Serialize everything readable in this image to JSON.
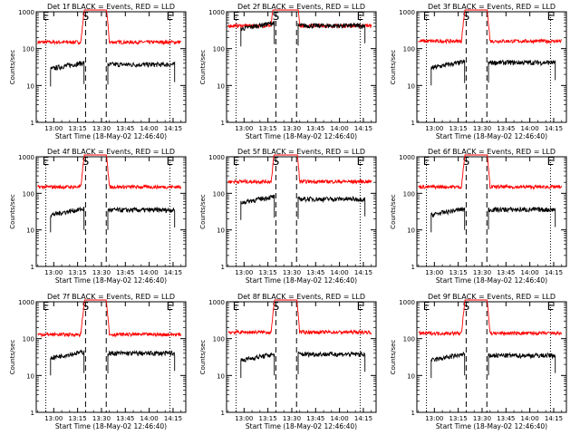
{
  "figure": {
    "xlabel": "Start Time (18-May-02 12:46:40)",
    "ylabel": "Counts/sec"
  },
  "chart_data": [
    {
      "type": "line",
      "title": "Det 1f BLACK = Events, RED = LLD",
      "xlabel": "Start Time (18-May-02 12:46:40)",
      "ylabel": "Counts/sec",
      "y_scale": "log",
      "ylim": [
        1,
        1000
      ],
      "x_ticks": [
        "13:00",
        "13:15",
        "13:30",
        "13:45",
        "14:00",
        "14:15"
      ],
      "y_ticks": [
        "1",
        "10",
        "100",
        "1000"
      ],
      "markers": [
        {
          "label": "E",
          "style": "dotted",
          "time": "12:55"
        },
        {
          "label": "S",
          "style": "dashed",
          "time": "13:20"
        },
        {
          "label": "",
          "style": "dashed",
          "time": "13:33"
        },
        {
          "label": "E",
          "style": "dotted",
          "time": "14:13"
        }
      ],
      "series": [
        {
          "color": "#000000",
          "segments": [
            {
              "start": "12:58",
              "end": "13:19",
              "level": 33
            },
            {
              "start": "13:34",
              "end": "14:16",
              "level": 37
            }
          ]
        },
        {
          "color": "#ff0000",
          "level": 150,
          "segments": [
            {
              "start": "12:50",
              "end": "14:20"
            }
          ]
        }
      ]
    },
    {
      "type": "line",
      "title": "Det 2f BLACK = Events, RED = LLD",
      "xlabel": "Start Time (18-May-02 12:46:40)",
      "ylabel": "Counts/sec",
      "y_scale": "log",
      "ylim": [
        1,
        1000
      ],
      "x_ticks": [
        "13:00",
        "13:15",
        "13:30",
        "13:45",
        "14:00",
        "14:15"
      ],
      "y_ticks": [
        "1",
        "10",
        "100",
        "1000"
      ],
      "markers": [
        {
          "label": "E",
          "style": "dotted",
          "time": "12:55"
        },
        {
          "label": "S",
          "style": "dashed",
          "time": "13:20"
        },
        {
          "label": "",
          "style": "dashed",
          "time": "13:33"
        },
        {
          "label": "E",
          "style": "dotted",
          "time": "14:13"
        }
      ],
      "series": [
        {
          "color": "#000000",
          "segments": [
            {
              "start": "12:58",
              "end": "13:19",
              "level": 400
            },
            {
              "start": "13:34",
              "end": "14:16",
              "level": 420
            }
          ]
        },
        {
          "color": "#ff0000",
          "level": 420,
          "segments": [
            {
              "start": "12:50",
              "end": "14:20"
            }
          ]
        }
      ]
    },
    {
      "type": "line",
      "title": "Det 3f BLACK = Events, RED = LLD",
      "xlabel": "Start Time (18-May-02 12:46:40)",
      "ylabel": "Counts/sec",
      "y_scale": "log",
      "ylim": [
        1,
        1000
      ],
      "x_ticks": [
        "13:00",
        "13:15",
        "13:30",
        "13:45",
        "14:00",
        "14:15"
      ],
      "y_ticks": [
        "1",
        "10",
        "100",
        "1000"
      ],
      "markers": [
        {
          "label": "E",
          "style": "dotted",
          "time": "12:55"
        },
        {
          "label": "S",
          "style": "dashed",
          "time": "13:20"
        },
        {
          "label": "",
          "style": "dashed",
          "time": "13:33"
        },
        {
          "label": "E",
          "style": "dotted",
          "time": "14:13"
        }
      ],
      "series": [
        {
          "color": "#000000",
          "segments": [
            {
              "start": "12:58",
              "end": "13:19",
              "level": 35
            },
            {
              "start": "13:34",
              "end": "14:16",
              "level": 42
            }
          ]
        },
        {
          "color": "#ff0000",
          "level": 160,
          "segments": [
            {
              "start": "12:50",
              "end": "14:20"
            }
          ]
        }
      ]
    },
    {
      "type": "line",
      "title": "Det 4f BLACK = Events, RED = LLD",
      "xlabel": "Start Time (18-May-02 12:46:40)",
      "ylabel": "Counts/sec",
      "y_scale": "log",
      "ylim": [
        1,
        1000
      ],
      "x_ticks": [
        "13:00",
        "13:15",
        "13:30",
        "13:45",
        "14:00",
        "14:15"
      ],
      "y_ticks": [
        "1",
        "10",
        "100",
        "1000"
      ],
      "markers": [
        {
          "label": "E",
          "style": "dotted",
          "time": "12:55"
        },
        {
          "label": "S",
          "style": "dashed",
          "time": "13:20"
        },
        {
          "label": "",
          "style": "dashed",
          "time": "13:33"
        },
        {
          "label": "E",
          "style": "dotted",
          "time": "14:13"
        }
      ],
      "series": [
        {
          "color": "#000000",
          "segments": [
            {
              "start": "12:58",
              "end": "13:19",
              "level": 30
            },
            {
              "start": "13:34",
              "end": "14:16",
              "level": 35
            }
          ]
        },
        {
          "color": "#ff0000",
          "level": 150,
          "segments": [
            {
              "start": "12:50",
              "end": "14:20"
            }
          ]
        }
      ]
    },
    {
      "type": "line",
      "title": "Det 5f BLACK = Events, RED = LLD",
      "xlabel": "Start Time (18-May-02 12:46:40)",
      "ylabel": "Counts/sec",
      "y_scale": "log",
      "ylim": [
        1,
        1000
      ],
      "x_ticks": [
        "13:00",
        "13:15",
        "13:30",
        "13:45",
        "14:00",
        "14:15"
      ],
      "y_ticks": [
        "1",
        "10",
        "100",
        "1000"
      ],
      "markers": [
        {
          "label": "E",
          "style": "dotted",
          "time": "12:55"
        },
        {
          "label": "S",
          "style": "dashed",
          "time": "13:20"
        },
        {
          "label": "",
          "style": "dashed",
          "time": "13:33"
        },
        {
          "label": "E",
          "style": "dotted",
          "time": "14:13"
        }
      ],
      "series": [
        {
          "color": "#000000",
          "segments": [
            {
              "start": "12:58",
              "end": "13:19",
              "level": 65
            },
            {
              "start": "13:34",
              "end": "14:16",
              "level": 70
            }
          ]
        },
        {
          "color": "#ff0000",
          "level": 210,
          "segments": [
            {
              "start": "12:50",
              "end": "14:20"
            }
          ]
        }
      ]
    },
    {
      "type": "line",
      "title": "Det 6f BLACK = Events, RED = LLD",
      "xlabel": "Start Time (18-May-02 12:46:40)",
      "ylabel": "Counts/sec",
      "y_scale": "log",
      "ylim": [
        1,
        1000
      ],
      "x_ticks": [
        "13:00",
        "13:15",
        "13:30",
        "13:45",
        "14:00",
        "14:15"
      ],
      "y_ticks": [
        "1",
        "10",
        "100",
        "1000"
      ],
      "markers": [
        {
          "label": "E",
          "style": "dotted",
          "time": "12:55"
        },
        {
          "label": "S",
          "style": "dashed",
          "time": "13:20"
        },
        {
          "label": "",
          "style": "dashed",
          "time": "13:33"
        },
        {
          "label": "E",
          "style": "dotted",
          "time": "14:13"
        }
      ],
      "series": [
        {
          "color": "#000000",
          "segments": [
            {
              "start": "12:58",
              "end": "13:19",
              "level": 30
            },
            {
              "start": "13:34",
              "end": "14:16",
              "level": 36
            }
          ]
        },
        {
          "color": "#ff0000",
          "level": 150,
          "segments": [
            {
              "start": "12:50",
              "end": "14:20"
            }
          ]
        }
      ]
    },
    {
      "type": "line",
      "title": "Det 7f BLACK = Events, RED = LLD",
      "xlabel": "Start Time (18-May-02 12:46:40)",
      "ylabel": "Counts/sec",
      "y_scale": "log",
      "ylim": [
        1,
        1000
      ],
      "x_ticks": [
        "13:00",
        "13:15",
        "13:30",
        "13:45",
        "14:00",
        "14:15"
      ],
      "y_ticks": [
        "1",
        "10",
        "100",
        "1000"
      ],
      "markers": [
        {
          "label": "E",
          "style": "dotted",
          "time": "12:55"
        },
        {
          "label": "S",
          "style": "dashed",
          "time": "13:20"
        },
        {
          "label": "",
          "style": "dashed",
          "time": "13:33"
        },
        {
          "label": "E",
          "style": "dotted",
          "time": "14:13"
        }
      ],
      "series": [
        {
          "color": "#000000",
          "segments": [
            {
              "start": "12:58",
              "end": "13:19",
              "level": 35
            },
            {
              "start": "13:34",
              "end": "14:16",
              "level": 40
            }
          ]
        },
        {
          "color": "#ff0000",
          "level": 130,
          "segments": [
            {
              "start": "12:50",
              "end": "14:20"
            }
          ]
        }
      ]
    },
    {
      "type": "line",
      "title": "Det 8f BLACK = Events, RED = LLD",
      "xlabel": "Start Time (18-May-02 12:46:40)",
      "ylabel": "Counts/sec",
      "y_scale": "log",
      "ylim": [
        1,
        1000
      ],
      "x_ticks": [
        "13:00",
        "13:15",
        "13:30",
        "13:45",
        "14:00",
        "14:15"
      ],
      "y_ticks": [
        "1",
        "10",
        "100",
        "1000"
      ],
      "markers": [
        {
          "label": "E",
          "style": "dotted",
          "time": "12:55"
        },
        {
          "label": "S",
          "style": "dashed",
          "time": "13:20"
        },
        {
          "label": "",
          "style": "dashed",
          "time": "13:33"
        },
        {
          "label": "E",
          "style": "dotted",
          "time": "14:13"
        }
      ],
      "series": [
        {
          "color": "#000000",
          "segments": [
            {
              "start": "12:58",
              "end": "13:19",
              "level": 30
            },
            {
              "start": "13:34",
              "end": "14:16",
              "level": 38
            }
          ]
        },
        {
          "color": "#ff0000",
          "level": 150,
          "segments": [
            {
              "start": "12:50",
              "end": "14:20"
            }
          ]
        }
      ]
    },
    {
      "type": "line",
      "title": "Det 9f BLACK = Events, RED = LLD",
      "xlabel": "Start Time (18-May-02 12:46:40)",
      "ylabel": "Counts/sec",
      "y_scale": "log",
      "ylim": [
        1,
        1000
      ],
      "x_ticks": [
        "13:00",
        "13:15",
        "13:30",
        "13:45",
        "14:00",
        "14:15"
      ],
      "y_ticks": [
        "1",
        "10",
        "100",
        "1000"
      ],
      "markers": [
        {
          "label": "E",
          "style": "dotted",
          "time": "12:55"
        },
        {
          "label": "S",
          "style": "dashed",
          "time": "13:20"
        },
        {
          "label": "",
          "style": "dashed",
          "time": "13:33"
        },
        {
          "label": "E",
          "style": "dotted",
          "time": "14:13"
        }
      ],
      "series": [
        {
          "color": "#000000",
          "segments": [
            {
              "start": "12:58",
              "end": "13:19",
              "level": 30
            },
            {
              "start": "13:34",
              "end": "14:16",
              "level": 35
            }
          ]
        },
        {
          "color": "#ff0000",
          "level": 140,
          "segments": [
            {
              "start": "12:50",
              "end": "14:20"
            }
          ]
        }
      ]
    }
  ]
}
